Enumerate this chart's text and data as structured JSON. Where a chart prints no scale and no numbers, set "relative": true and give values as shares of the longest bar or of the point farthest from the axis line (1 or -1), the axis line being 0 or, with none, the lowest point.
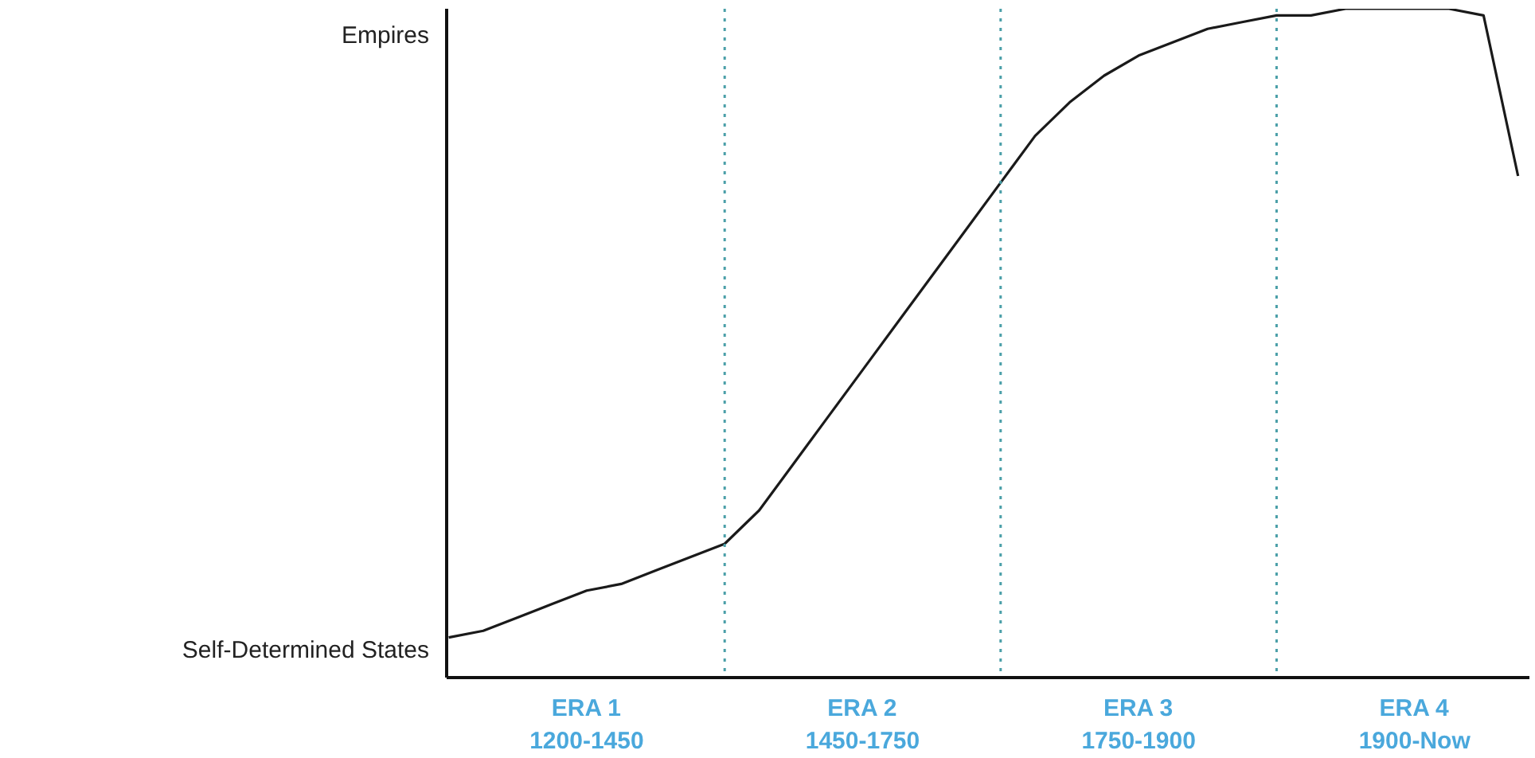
{
  "chart_data": {
    "type": "line",
    "relative": true,
    "categories": [
      null,
      null,
      null,
      null,
      "ERA 1\n1200-1450",
      null,
      null,
      null,
      null,
      null,
      null,
      null,
      "ERA 2\n1450-1750",
      null,
      null,
      null,
      null,
      null,
      null,
      null,
      "ERA 3\n1750-1900",
      null,
      null,
      null,
      null,
      null,
      null,
      null,
      "ERA 4\n1900-Now",
      null,
      null,
      null
    ],
    "series": [
      {
        "color": "#1a1a1a",
        "values": [
          0.06,
          0.07,
          0.09,
          0.11,
          0.13,
          0.14,
          0.16,
          0.18,
          0.2,
          0.25,
          0.32,
          0.39,
          0.46,
          0.53,
          0.6,
          0.67,
          0.74,
          0.81,
          0.86,
          0.9,
          0.93,
          0.95,
          0.97,
          0.98,
          0.99,
          0.99,
          1.0,
          1.0,
          1.0,
          1.0,
          0.99,
          0.75
        ]
      }
    ],
    "annotations": [
      "Empires",
      "Self-Determined States"
    ],
    "grid": "x",
    "marker": "none",
    "line_style": "solid"
  }
}
